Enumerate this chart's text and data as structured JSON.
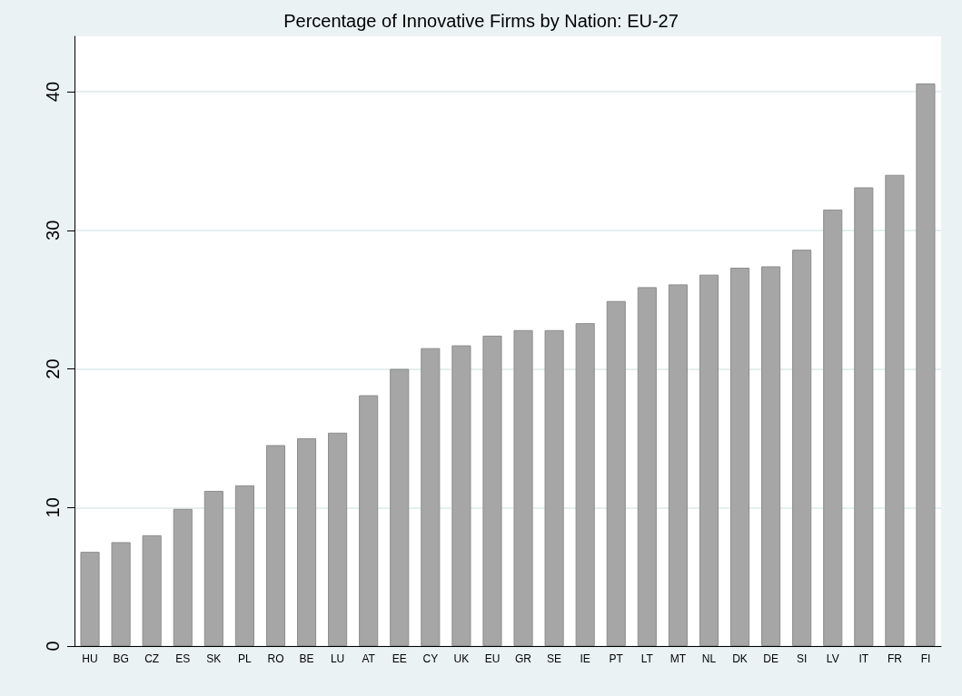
{
  "chart_data": {
    "type": "bar",
    "title": "Percentage of Innovative Firms by Nation: EU-27",
    "categories": [
      "HU",
      "BG",
      "CZ",
      "ES",
      "SK",
      "PL",
      "RO",
      "BE",
      "LU",
      "AT",
      "EE",
      "CY",
      "UK",
      "EU",
      "GR",
      "SE",
      "IE",
      "PT",
      "LT",
      "MT",
      "NL",
      "DK",
      "DE",
      "SI",
      "LV",
      "IT",
      "FR",
      "FI"
    ],
    "values": [
      6.8,
      7.5,
      8.0,
      9.9,
      11.2,
      11.6,
      14.5,
      15.0,
      15.4,
      18.1,
      20.0,
      21.5,
      21.7,
      22.4,
      22.8,
      22.8,
      23.3,
      24.9,
      25.9,
      26.1,
      26.8,
      27.3,
      27.4,
      28.6,
      31.5,
      33.1,
      34.0,
      40.6
    ],
    "color": "#a6a6a6",
    "ylim": [
      0,
      44
    ],
    "yticks": [
      0,
      10,
      20,
      30,
      40
    ],
    "grid": "y"
  }
}
